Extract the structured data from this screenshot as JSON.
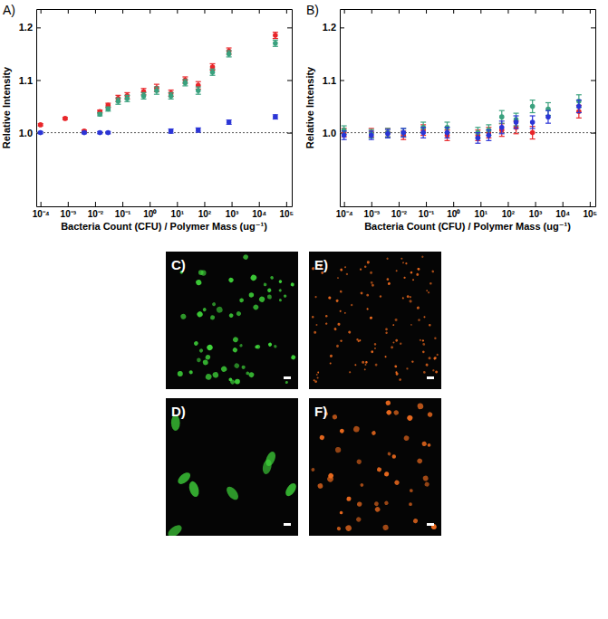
{
  "chart_data": [
    {
      "type": "scatter",
      "panel_label": "A)",
      "x_label": "Bacteria Count (CFU) / Polymer Mass (ug⁻¹)",
      "y_label": "Relative Intensity",
      "log": "x",
      "xlim": [
        7e-05,
        160000
      ],
      "xticks": [
        {
          "value": 0.0001,
          "label": "10⁻⁴"
        },
        {
          "value": 0.001,
          "label": "10⁻³"
        },
        {
          "value": 0.01,
          "label": "10⁻²"
        },
        {
          "value": 0.1,
          "label": "10⁻¹"
        },
        {
          "value": 1,
          "label": "10⁰"
        },
        {
          "value": 10,
          "label": "10¹"
        },
        {
          "value": 100,
          "label": "10²"
        },
        {
          "value": 1000,
          "label": "10³"
        },
        {
          "value": 10000,
          "label": "10⁴"
        },
        {
          "value": 100000,
          "label": "10⁵"
        }
      ],
      "ylim": [
        0.86,
        1.235
      ],
      "yticks": [
        {
          "value": 1,
          "label": "1.0"
        },
        {
          "value": 1.1,
          "label": "1.1"
        },
        {
          "value": 1.2,
          "label": "1.2"
        }
      ],
      "hline": 1,
      "x": [
        0.0001,
        0.0008,
        0.004,
        0.015,
        0.03,
        0.07,
        0.15,
        0.6,
        1.8,
        6,
        20,
        60,
        200,
        800,
        40000
      ],
      "series": [
        {
          "color": "#e8262a",
          "values": [
            1.015,
            1.027,
            1.003,
            1.04,
            1.052,
            1.065,
            1.07,
            1.078,
            1.085,
            1.075,
            1.1,
            1.09,
            1.125,
            1.155,
            1.185
          ],
          "errors": [
            0.002,
            0.002,
            0.002,
            0.003,
            0.004,
            0.006,
            0.006,
            0.006,
            0.007,
            0.006,
            0.006,
            0.007,
            0.006,
            0.006,
            0.006
          ]
        },
        {
          "color": "#3aa17e",
          "values": [
            null,
            null,
            null,
            1.035,
            1.045,
            1.06,
            1.065,
            1.07,
            1.08,
            1.07,
            1.095,
            1.08,
            1.115,
            1.15,
            1.17
          ],
          "errors": [
            null,
            null,
            null,
            0.003,
            0.004,
            0.006,
            0.006,
            0.006,
            0.007,
            0.006,
            0.006,
            0.007,
            0.006,
            0.006,
            0.006
          ]
        },
        {
          "color": "#2b35d6",
          "values": [
            1.0,
            null,
            1.0,
            1.0,
            1.0,
            null,
            null,
            null,
            null,
            1.003,
            null,
            1.005,
            null,
            1.02,
            1.03
          ],
          "errors": [
            0.002,
            null,
            0.002,
            0.002,
            0.002,
            null,
            null,
            null,
            null,
            0.004,
            null,
            0.004,
            null,
            0.004,
            0.004
          ]
        }
      ]
    },
    {
      "type": "scatter",
      "panel_label": "B)",
      "x_label": "Bacteria Count (CFU) / Polymer Mass (ug⁻¹)",
      "y_label": "Relative Intensity",
      "log": "x",
      "xlim": [
        7e-05,
        160000
      ],
      "xticks": [
        {
          "value": 0.0001,
          "label": "10⁻⁴"
        },
        {
          "value": 0.001,
          "label": "10⁻³"
        },
        {
          "value": 0.01,
          "label": "10⁻²"
        },
        {
          "value": 0.1,
          "label": "10⁻¹"
        },
        {
          "value": 1,
          "label": "10⁰"
        },
        {
          "value": 10,
          "label": "10¹"
        },
        {
          "value": 100,
          "label": "10²"
        },
        {
          "value": 1000,
          "label": "10³"
        },
        {
          "value": 10000,
          "label": "10⁴"
        },
        {
          "value": 100000,
          "label": "10⁵"
        }
      ],
      "ylim": [
        0.86,
        1.235
      ],
      "yticks": [
        {
          "value": 1,
          "label": "1.0"
        },
        {
          "value": 1.1,
          "label": "1.1"
        },
        {
          "value": 1.2,
          "label": "1.2"
        }
      ],
      "hline": 1,
      "x": [
        0.0001,
        0.001,
        0.004,
        0.015,
        0.08,
        0.6,
        8,
        20,
        60,
        200,
        800,
        3000,
        40000
      ],
      "series": [
        {
          "color": "#e8262a",
          "values": [
            1.0,
            1.0,
            1.0,
            0.995,
            1.005,
            0.995,
            0.995,
            1.0,
            1.005,
            1.01,
            1.0,
            null,
            1.04
          ],
          "errors": [
            0.008,
            0.008,
            0.008,
            0.008,
            0.01,
            0.01,
            0.01,
            0.01,
            0.012,
            0.012,
            0.012,
            null,
            0.012
          ]
        },
        {
          "color": "#3aa17e",
          "values": [
            1.005,
            0.998,
            1.0,
            1.0,
            1.01,
            1.01,
            1.0,
            1.005,
            1.03,
            1.025,
            1.05,
            1.045,
            1.06
          ],
          "errors": [
            0.008,
            0.008,
            0.008,
            0.008,
            0.01,
            0.01,
            0.01,
            0.01,
            0.012,
            0.012,
            0.012,
            0.012,
            0.012
          ]
        },
        {
          "color": "#2b35d6",
          "values": [
            0.995,
            0.995,
            0.998,
            1.0,
            1.0,
            1.0,
            0.99,
            0.995,
            1.01,
            1.02,
            1.02,
            1.03,
            1.05
          ],
          "errors": [
            0.008,
            0.008,
            0.008,
            0.008,
            0.01,
            0.01,
            0.01,
            0.01,
            0.012,
            0.012,
            0.012,
            0.012,
            0.012
          ]
        }
      ]
    }
  ],
  "images": [
    {
      "label": "C)",
      "color": "#3fd43a"
    },
    {
      "label": "D)",
      "color": "#3fd43a"
    },
    {
      "label": "E)",
      "color": "#ec6a1e"
    },
    {
      "label": "F)",
      "color": "#ec6a1e"
    }
  ]
}
